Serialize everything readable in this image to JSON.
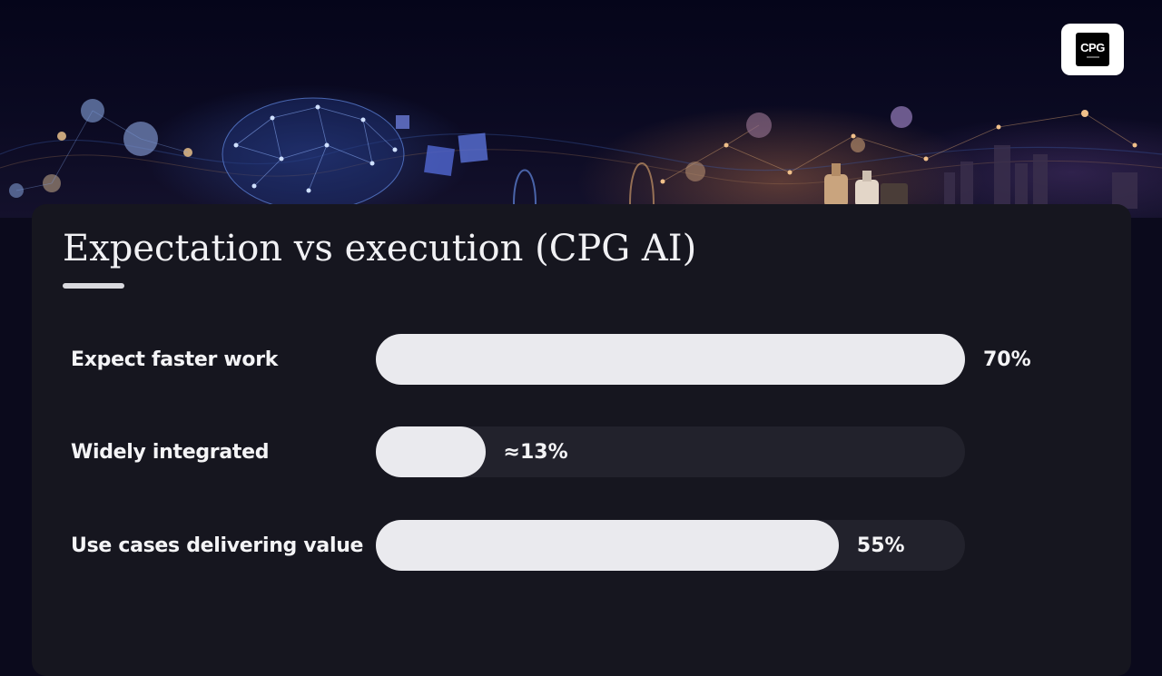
{
  "colors": {
    "background": "#0b0a1c",
    "panel": "#16161f",
    "bar_fill": "#eaeaee",
    "bar_track": "#22222c",
    "text": "#f4f4f6"
  },
  "logo": {
    "text": "CPG"
  },
  "chart_data": {
    "type": "bar",
    "orientation": "horizontal",
    "title": "Expectation vs execution (CPG AI)",
    "xlim": [
      0,
      70
    ],
    "categories": [
      "Expect faster work",
      "Widely integrated",
      "Use cases delivering value"
    ],
    "values": [
      70,
      13,
      55
    ],
    "value_labels": [
      "70%",
      "≈13%",
      "55%"
    ]
  }
}
